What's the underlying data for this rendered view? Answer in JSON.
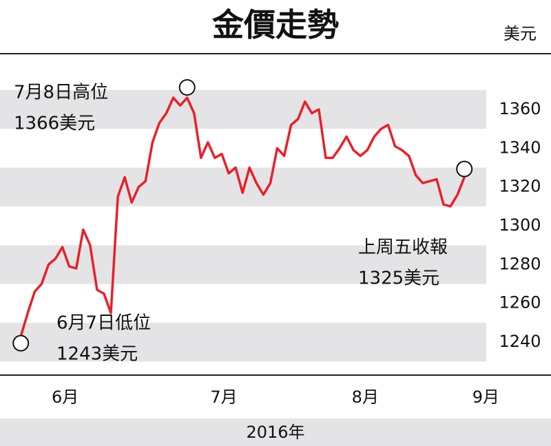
{
  "chart_data": {
    "type": "line",
    "title": "金價走勢",
    "unit": "美元",
    "xlabel": "2016年",
    "categories": [
      null,
      null,
      null,
      null,
      null,
      null,
      null,
      null,
      null,
      null,
      null,
      null,
      null,
      null,
      null,
      null,
      null,
      null,
      null,
      null,
      null,
      null,
      null,
      null,
      null,
      null,
      null,
      null,
      null,
      null,
      null,
      null,
      null,
      null,
      null,
      null,
      null,
      null,
      null,
      null,
      null,
      null,
      null,
      null,
      null,
      null,
      null,
      null,
      null,
      null,
      null,
      null,
      null,
      null,
      null,
      null,
      null,
      null,
      null,
      null,
      null,
      null,
      null,
      null,
      null
    ],
    "series": [
      {
        "name": "金價",
        "color": "#e8202a",
        "values": [
          1243,
          1255,
          1266,
          1270,
          1280,
          1283,
          1289,
          1279,
          1278,
          1298,
          1290,
          1267,
          1265,
          1255,
          1315,
          1325,
          1312,
          1320,
          1323,
          1343,
          1353,
          1358,
          1366,
          1362,
          1366,
          1358,
          1335,
          1343,
          1335,
          1337,
          1327,
          1330,
          1317,
          1330,
          1322,
          1316,
          1322,
          1340,
          1336,
          1352,
          1355,
          1364,
          1358,
          1360,
          1335,
          1335,
          1340,
          1346,
          1339,
          1336,
          1339,
          1346,
          1350,
          1352,
          1341,
          1339,
          1336,
          1326,
          1322,
          1323,
          1324,
          1311,
          1310,
          1316,
          1325
        ]
      }
    ],
    "xlim": [
      -3,
      76.5
    ],
    "xticks": [
      {
        "value": 6.4,
        "label": "6月"
      },
      {
        "value": 29.3,
        "label": "7月"
      },
      {
        "value": 49.7,
        "label": "8月"
      },
      {
        "value": 67.1,
        "label": "9月"
      }
    ],
    "ylim": [
      1223,
      1388
    ],
    "yticks": [
      1240,
      1260,
      1280,
      1300,
      1320,
      1340,
      1360
    ],
    "grid": "bands",
    "annotations": [
      {
        "lines": [
          "7月8日高位",
          "1366美元"
        ]
      },
      {
        "lines": [
          "6月7日低位",
          "1243美元"
        ]
      },
      {
        "lines": [
          "上周五收報",
          "1325美元"
        ]
      }
    ]
  }
}
